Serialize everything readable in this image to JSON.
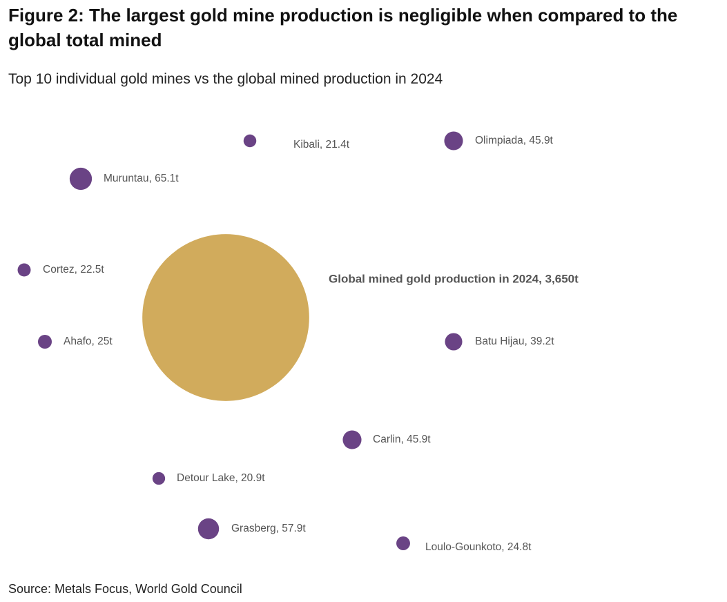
{
  "title": "Figure 2: The largest gold mine production is negligible when compared to the global total mined",
  "subtitle": "Top 10 individual gold mines vs the global mined production in 2024",
  "source": "Source: Metals Focus, World Gold Council",
  "chart_data": {
    "type": "bubble",
    "unit": "t",
    "colors": {
      "mine": "#6a4385",
      "global": "#d1ab5c"
    },
    "global": {
      "name": "Global mined gold production in 2024",
      "value": 3650,
      "label": "Global mined gold production in 2024, 3,650t"
    },
    "mines": [
      {
        "name": "Kibali",
        "value": 21.4,
        "label": "Kibali, 21.4t"
      },
      {
        "name": "Olimpiada",
        "value": 45.9,
        "label": "Olimpiada, 45.9t"
      },
      {
        "name": "Muruntau",
        "value": 65.1,
        "label": "Muruntau, 65.1t"
      },
      {
        "name": "Cortez",
        "value": 22.5,
        "label": "Cortez, 22.5t"
      },
      {
        "name": "Ahafo",
        "value": 25,
        "label": "Ahafo, 25t"
      },
      {
        "name": "Batu Hijau",
        "value": 39.2,
        "label": "Batu Hijau, 39.2t"
      },
      {
        "name": "Carlin",
        "value": 45.9,
        "label": "Carlin, 45.9t"
      },
      {
        "name": "Detour Lake",
        "value": 20.9,
        "label": "Detour Lake, 20.9t"
      },
      {
        "name": "Grasberg",
        "value": 57.9,
        "label": "Grasberg, 57.9t"
      },
      {
        "name": "Loulo-Gounkoto",
        "value": 24.8,
        "label": "Loulo-Gounkoto, 24.8t"
      }
    ]
  }
}
